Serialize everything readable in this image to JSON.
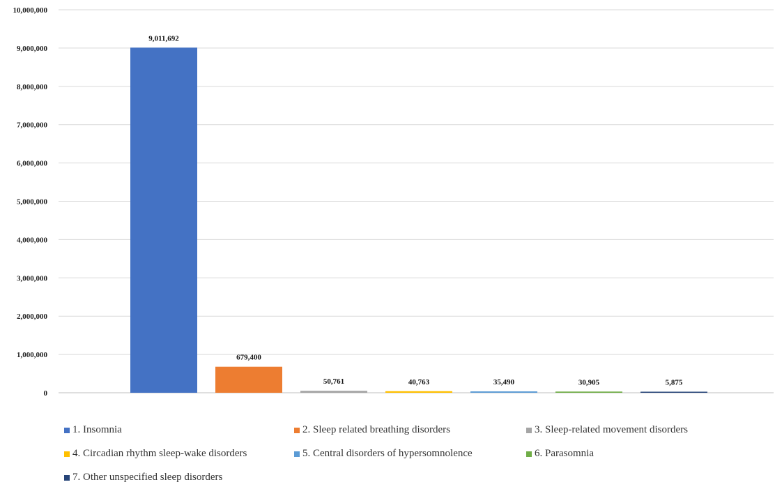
{
  "chart_data": {
    "type": "bar",
    "categories": [
      "1. Insomnia",
      "2. Sleep related breathing disorders",
      "3. Sleep-related movement disorders",
      "4. Circadian rhythm sleep-wake disorders",
      "5. Central disorders of hypersomnolence",
      "6. Parasomnia",
      "7. Other unspecified sleep disorders"
    ],
    "values": [
      9011692,
      679400,
      50761,
      40763,
      35490,
      30905,
      5875
    ],
    "data_labels": [
      "9,011,692",
      "679,400",
      "50,761",
      "40,763",
      "35,490",
      "30,905",
      "5,875"
    ],
    "colors": [
      "#4472C4",
      "#ED7D31",
      "#A5A5A5",
      "#FFC000",
      "#5B9BD5",
      "#70AD47",
      "#264478"
    ],
    "ylim": [
      0,
      10000000
    ],
    "yticks": [
      0,
      1000000,
      2000000,
      3000000,
      4000000,
      5000000,
      6000000,
      7000000,
      8000000,
      9000000,
      10000000
    ],
    "ytick_labels": [
      "0",
      "1,000,000",
      "2,000,000",
      "3,000,000",
      "4,000,000",
      "5,000,000",
      "6,000,000",
      "7,000,000",
      "8,000,000",
      "9,000,000",
      "10,000,000"
    ],
    "grid": true,
    "legend_position": "bottom"
  }
}
